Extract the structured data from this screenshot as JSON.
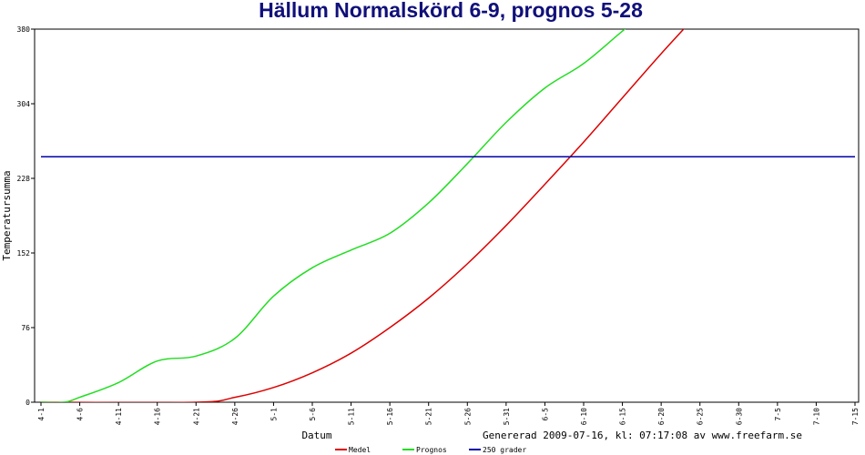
{
  "chart_data": {
    "type": "line",
    "title": "Hällum Normalskörd 6-9, prognos 5-28",
    "xlabel": "Datum",
    "ylabel": "Temperatursumma",
    "footer": "Genererad 2009-07-16, kl: 07:17:08 av www.freefarm.se",
    "ylim": [
      0,
      380
    ],
    "yticks": [
      "0",
      "76",
      "152",
      "228",
      "304",
      "380"
    ],
    "x_start": "4-1",
    "x_end": "7-15",
    "xticks": [
      "4-1",
      "4-6",
      "4-11",
      "4-16",
      "4-21",
      "4-26",
      "5-1",
      "5-6",
      "5-11",
      "5-16",
      "5-21",
      "5-26",
      "5-31",
      "6-5",
      "6-10",
      "6-15",
      "6-20",
      "6-25",
      "6-30",
      "7-5",
      "7-10",
      "7-15"
    ],
    "grid": false,
    "legend_position": "bottom",
    "series": [
      {
        "name": "Medel",
        "color": "#dd0000",
        "x": [
          "4-1",
          "4-21",
          "4-26",
          "5-1",
          "5-6",
          "5-11",
          "5-16",
          "5-21",
          "5-26",
          "5-31",
          "6-5",
          "6-10",
          "6-15",
          "6-20",
          "6-25"
        ],
        "values": [
          0,
          0,
          5,
          15,
          30,
          50,
          76,
          106,
          141,
          180,
          222,
          265,
          310,
          355,
          398
        ]
      },
      {
        "name": "Prognos",
        "color": "#22dd22",
        "x": [
          "4-1",
          "4-4",
          "4-6",
          "4-11",
          "4-16",
          "4-21",
          "4-26",
          "5-1",
          "5-6",
          "5-11",
          "5-16",
          "5-21",
          "5-26",
          "5-31",
          "6-5",
          "6-10",
          "6-15",
          "6-20"
        ],
        "values": [
          0,
          0,
          5,
          20,
          42,
          47,
          65,
          108,
          137,
          155,
          172,
          203,
          243,
          285,
          320,
          345,
          378,
          410
        ]
      },
      {
        "name": "250 grader",
        "color": "#0000aa",
        "x": [
          "4-1",
          "7-15"
        ],
        "values": [
          250,
          250
        ]
      }
    ]
  }
}
